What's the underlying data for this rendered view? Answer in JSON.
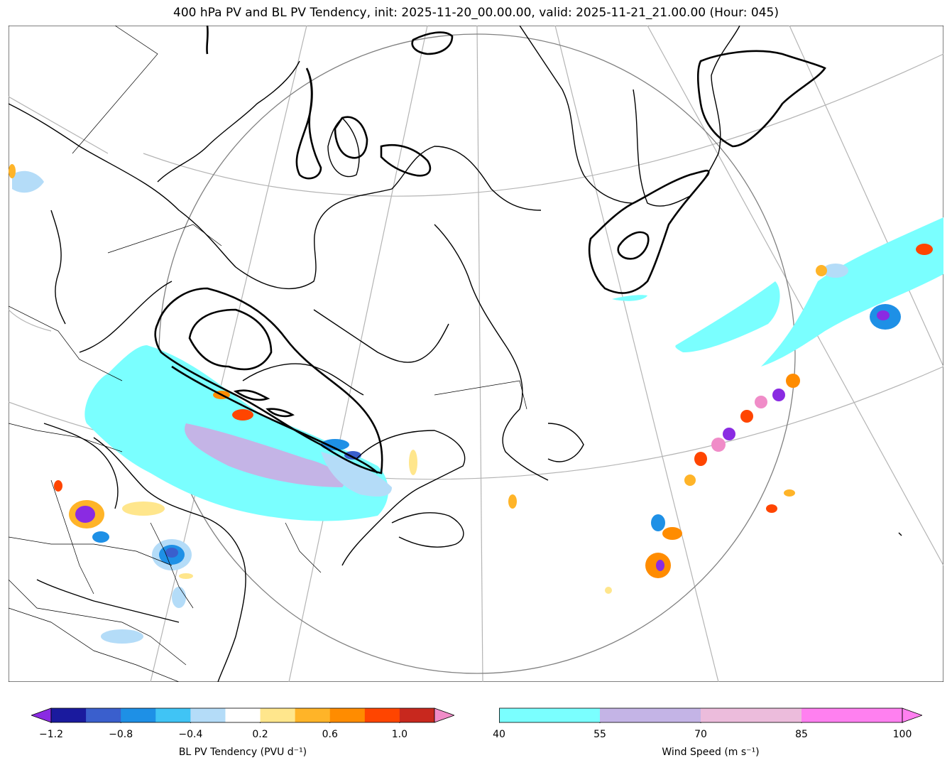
{
  "title": "400 hPa PV and BL PV Tendency, init: 2025-11-20_00.00.00, valid: 2025-11-21_21.00.00 (Hour: 045)",
  "pv_tendency_colorbar": {
    "label": "BL PV Tendency (PVU d⁻¹)",
    "ticks": [
      "−1.2",
      "−0.8",
      "−0.4",
      "0.2",
      "0.6",
      "1.0"
    ],
    "colors": [
      "#1a1a9e",
      "#3a5fcd",
      "#1e90e6",
      "#40c4f5",
      "#b4dcf8",
      "#ffffff",
      "#ffe68c",
      "#ffb428",
      "#ff8c00",
      "#ff4500",
      "#c8281e"
    ],
    "under_color": "#8a2be2",
    "over_color": "#f08cc8"
  },
  "wind_colorbar": {
    "label": "Wind Speed (m s⁻¹)",
    "ticks": [
      "40",
      "55",
      "70",
      "85",
      "100"
    ],
    "colors": [
      "#7affff",
      "#c4b4e6",
      "#ecbcdc",
      "#ff80f0"
    ]
  }
}
